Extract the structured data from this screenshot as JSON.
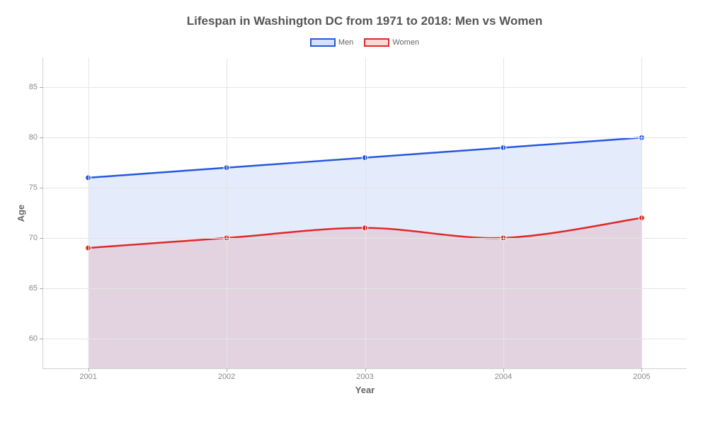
{
  "chart": {
    "type": "area",
    "title": "Lifespan in Washington DC from 1971 to 2018: Men vs Women",
    "title_fontsize": 17,
    "title_color": "#555555",
    "xlabel": "Year",
    "ylabel": "Age",
    "label_fontsize": 13,
    "label_color": "#666666",
    "background_color": "#ffffff",
    "grid_color": "#e5e5e5",
    "axis_color": "#d0d0d0",
    "tick_fontsize": 11,
    "tick_color": "#888888",
    "categories": [
      "2001",
      "2002",
      "2003",
      "2004",
      "2005"
    ],
    "x_positions_pct": [
      7,
      28.5,
      50,
      71.5,
      93
    ],
    "ylim": [
      57,
      88
    ],
    "yticks": [
      60,
      65,
      70,
      75,
      80,
      85
    ],
    "series": [
      {
        "name": "Men",
        "values": [
          76,
          77,
          78,
          79,
          80
        ],
        "line_color": "#2458dd",
        "fill_color": "rgba(36,88,221,0.12)",
        "line_width": 2.5,
        "marker_radius": 4,
        "marker_fill": "#2458dd",
        "marker_stroke": "#ffffff"
      },
      {
        "name": "Women",
        "values": [
          69,
          70,
          71,
          70,
          72
        ],
        "line_color": "#e02828",
        "fill_color": "rgba(224,40,40,0.12)",
        "line_width": 2.5,
        "marker_radius": 4,
        "marker_fill": "#e02828",
        "marker_stroke": "#ffffff"
      }
    ],
    "legend": {
      "position": "top-center",
      "fontsize": 11,
      "items": [
        {
          "label": "Men",
          "border_color": "#2458dd",
          "fill_color": "rgba(36,88,221,0.18)"
        },
        {
          "label": "Women",
          "border_color": "#e02828",
          "fill_color": "rgba(224,40,40,0.18)"
        }
      ]
    }
  }
}
